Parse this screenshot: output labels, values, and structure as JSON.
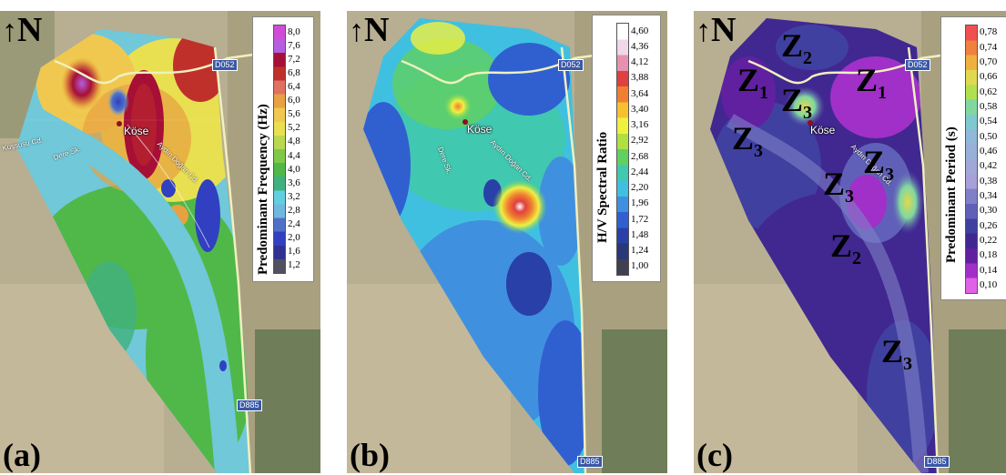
{
  "north_label": "N",
  "panels": [
    {
      "label": "(a)",
      "legend_title": "Predominant Frequency (Hz)",
      "ticks": [
        "8,0",
        "7,6",
        "7,2",
        "6,8",
        "6,4",
        "6,0",
        "5,6",
        "5,2",
        "4,8",
        "4,4",
        "4,0",
        "3,6",
        "3,2",
        "2,8",
        "2,4",
        "2,0",
        "1,6",
        "1,2"
      ],
      "colors": [
        "#d04bd8",
        "#b55ee0",
        "#a60f36",
        "#c0302a",
        "#e07060",
        "#e8a040",
        "#f0c850",
        "#e8e050",
        "#b8d850",
        "#80c848",
        "#50b848",
        "#40b080",
        "#60d0e0",
        "#70b8e0",
        "#5070c8",
        "#3040c0",
        "#303090",
        "#505060"
      ]
    },
    {
      "label": "(b)",
      "legend_title": "H/V Spectral Ratio",
      "ticks": [
        "4,60",
        "4,36",
        "4,12",
        "3,88",
        "3,64",
        "3,40",
        "3,16",
        "2,92",
        "2,68",
        "2,44",
        "2,20",
        "1,96",
        "1,72",
        "1,48",
        "1,24",
        "1,00"
      ],
      "colors": [
        "#ffffff",
        "#f0d8e8",
        "#e890b0",
        "#e04040",
        "#f08030",
        "#f8c030",
        "#f0f040",
        "#b0e040",
        "#60d060",
        "#40c8b0",
        "#40c0e0",
        "#4090e0",
        "#3060d0",
        "#2840a8",
        "#283878",
        "#404050"
      ]
    },
    {
      "label": "(c)",
      "legend_title": "Predominant Period (s)",
      "ticks": [
        "0,78",
        "0,74",
        "0,70",
        "0,66",
        "0,62",
        "0,58",
        "0,54",
        "0,50",
        "0,46",
        "0,42",
        "0,38",
        "0,34",
        "0,30",
        "0,26",
        "0,22",
        "0,18",
        "0,14",
        "0,10"
      ],
      "colors": [
        "#f05050",
        "#f08040",
        "#f0b040",
        "#e0d850",
        "#b0e050",
        "#80d8a0",
        "#80c8d0",
        "#90b8d8",
        "#98b0d8",
        "#a0a8d8",
        "#a8a0d8",
        "#8080c8",
        "#6060b8",
        "#4040a0",
        "#402890",
        "#6020a0",
        "#a030c8",
        "#e060e8"
      ]
    }
  ],
  "map_labels": {
    "town": "Köse",
    "road_top": "D052",
    "road_bottom": "D885",
    "street_a": "Aydın Doğan Cd.",
    "street_b": "Kuşsusu Cd.",
    "street_c": "Dere Sk."
  },
  "zones": [
    {
      "z": "Z",
      "n": "2"
    },
    {
      "z": "Z",
      "n": "1"
    },
    {
      "z": "Z",
      "n": "3"
    },
    {
      "z": "Z",
      "n": "1"
    },
    {
      "z": "Z",
      "n": "3"
    },
    {
      "z": "Z",
      "n": "3"
    },
    {
      "z": "Z",
      "n": "3"
    },
    {
      "z": "Z",
      "n": "2"
    },
    {
      "z": "Z",
      "n": "3"
    }
  ]
}
